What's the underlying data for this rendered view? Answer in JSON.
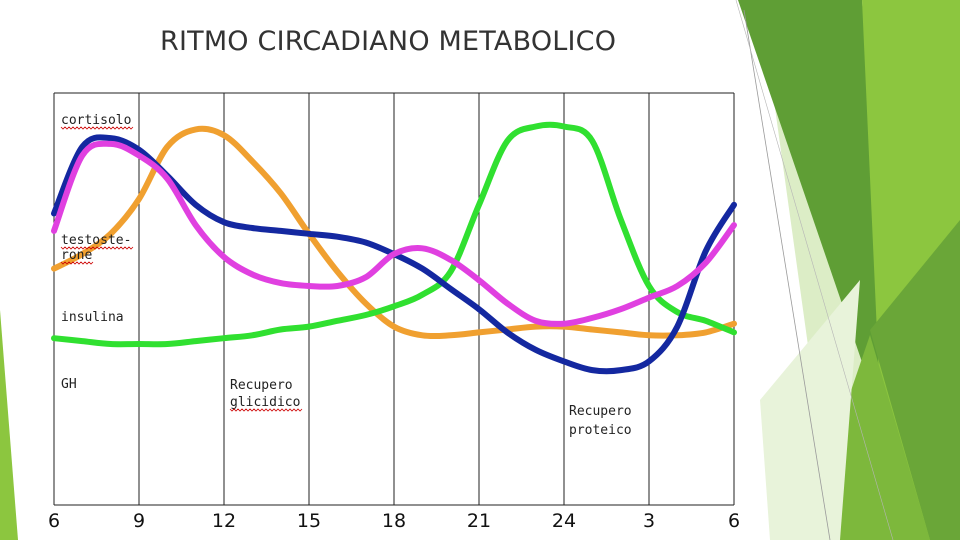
{
  "slide": {
    "title": "RITMO CIRCADIANO METABOLICO"
  },
  "colors": {
    "cortisol": "#1428a0",
    "testosterone": "#e040e0",
    "insulin": "#f0a030",
    "gh": "#30e030",
    "green_dark": "#5f9e35",
    "green_mid": "#8cc63f",
    "green_light": "#d6ebb8"
  },
  "chart_data": {
    "type": "line",
    "title": "RITMO CIRCADIANO METABOLICO",
    "xlabel": "",
    "ylabel": "",
    "x_ticks": [
      "6",
      "9",
      "12",
      "15",
      "18",
      "21",
      "24",
      "3",
      "6"
    ],
    "x": [
      0,
      1,
      2,
      3,
      4,
      5,
      6,
      7,
      8,
      9,
      10,
      11,
      12,
      13,
      14,
      15,
      16,
      17,
      18,
      19,
      20,
      21,
      22,
      23,
      24
    ],
    "xlim": [
      0,
      24
    ],
    "ylim": [
      0,
      100
    ],
    "grid": "vertical",
    "series": [
      {
        "name": "cortisolo",
        "color_key": "cortisol",
        "values": [
          65,
          88,
          91,
          87,
          78,
          68,
          62,
          60,
          59,
          58,
          57,
          55,
          51,
          46,
          39,
          32,
          24,
          18,
          14,
          11,
          11,
          14,
          26,
          52,
          68
        ]
      },
      {
        "name": "testosterone",
        "color_key": "testosterone",
        "values": [
          59,
          85,
          89,
          85,
          77,
          61,
          50,
          44,
          41,
          40,
          40,
          43,
          51,
          53,
          49,
          42,
          34,
          28,
          27,
          29,
          32,
          36,
          40,
          48,
          61
        ]
      },
      {
        "name": "insulina",
        "color_key": "insulin",
        "values": [
          46,
          51,
          58,
          70,
          88,
          94,
          92,
          83,
          72,
          58,
          45,
          34,
          26,
          23,
          23,
          24,
          25,
          26,
          26,
          25,
          24,
          23,
          23,
          24,
          27
        ]
      },
      {
        "name": "GH",
        "color_key": "gh",
        "values": [
          22,
          21,
          20,
          20,
          20,
          21,
          22,
          23,
          25,
          26,
          28,
          30,
          33,
          37,
          45,
          68,
          90,
          95,
          95,
          90,
          63,
          40,
          31,
          28,
          24
        ]
      }
    ],
    "curve_labels": [
      {
        "lines": [
          "cortisolo"
        ],
        "series": "cortisolo"
      },
      {
        "lines": [
          "testoste-",
          "rone"
        ],
        "series": "testosterone"
      },
      {
        "lines": [
          "insulina"
        ],
        "series": "insulina"
      },
      {
        "lines": [
          "GH"
        ],
        "series": "GH"
      }
    ],
    "annotations": [
      {
        "lines": [
          "Recupero",
          "glicidico"
        ]
      },
      {
        "lines": [
          "Recupero",
          "proteico"
        ]
      }
    ]
  }
}
